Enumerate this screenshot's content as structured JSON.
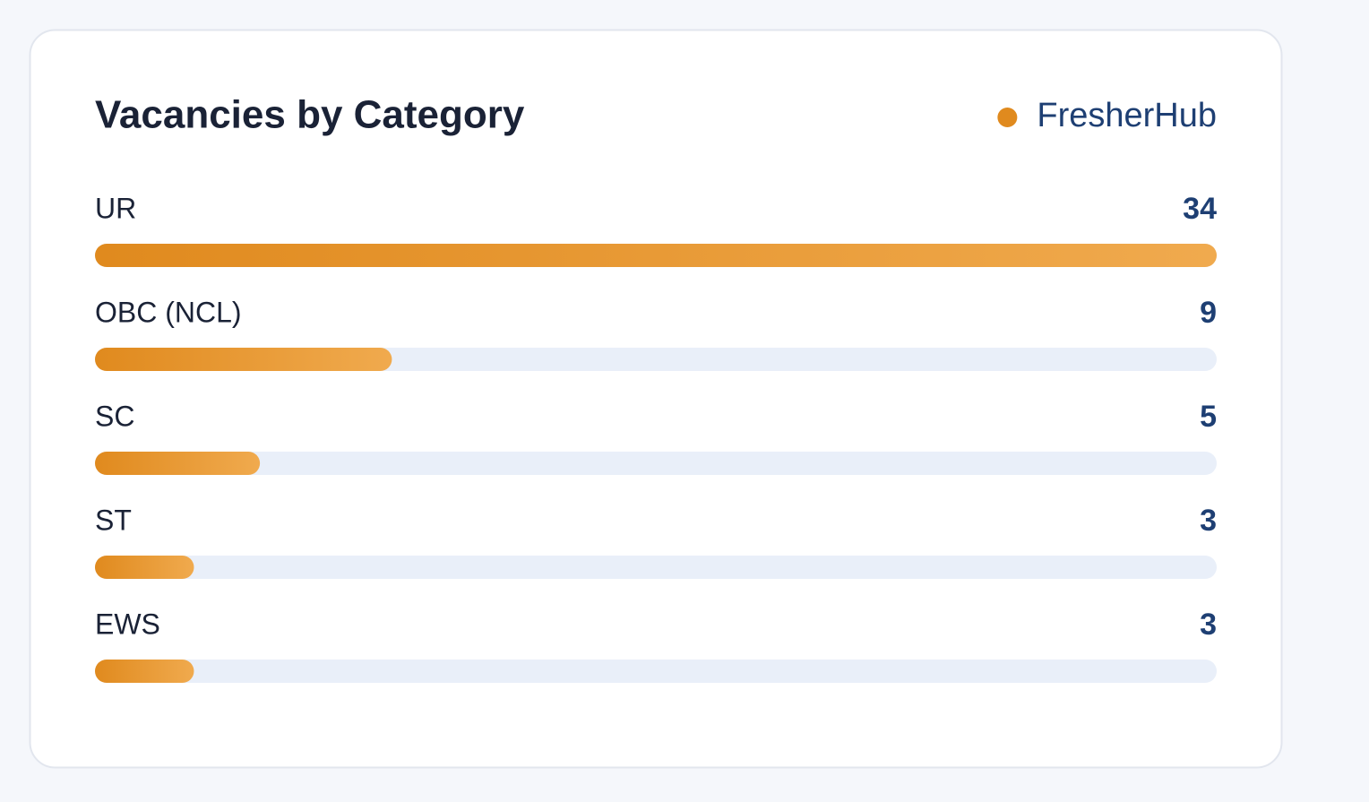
{
  "chart_data": {
    "type": "bar",
    "orientation": "horizontal",
    "title": "Vacancies by Category",
    "categories": [
      "UR",
      "OBC (NCL)",
      "SC",
      "ST",
      "EWS"
    ],
    "series": [
      {
        "name": "FresherHub",
        "color": "#e08a1e",
        "values": [
          34,
          9,
          5,
          3,
          3
        ]
      }
    ]
  }
}
